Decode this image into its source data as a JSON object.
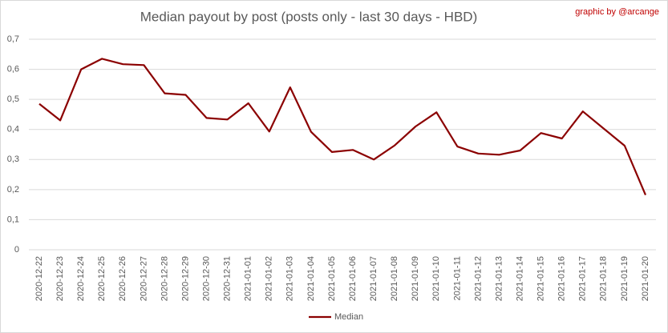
{
  "chart_data": {
    "type": "line",
    "title": "Median payout by post (posts only - last 30 days - HBD)",
    "annotation": "graphic by @arcange",
    "categories": [
      "2020-12-22",
      "2020-12-23",
      "2020-12-24",
      "2020-12-25",
      "2020-12-26",
      "2020-12-27",
      "2020-12-28",
      "2020-12-29",
      "2020-12-30",
      "2020-12-31",
      "2021-01-01",
      "2021-01-02",
      "2021-01-03",
      "2021-01-04",
      "2021-01-05",
      "2021-01-06",
      "2021-01-07",
      "2021-01-08",
      "2021-01-09",
      "2021-01-10",
      "2021-01-11",
      "2021-01-12",
      "2021-01-13",
      "2021-01-14",
      "2021-01-15",
      "2021-01-16",
      "2021-01-17",
      "2021-01-18",
      "2021-01-19",
      "2021-01-20"
    ],
    "series": [
      {
        "name": "Median",
        "color": "#8b0000",
        "values": [
          0.485,
          0.43,
          0.6,
          0.635,
          0.617,
          0.614,
          0.52,
          0.515,
          0.438,
          0.433,
          0.487,
          0.393,
          0.54,
          0.392,
          0.325,
          0.332,
          0.3,
          0.347,
          0.41,
          0.457,
          0.343,
          0.32,
          0.316,
          0.33,
          0.388,
          0.37,
          0.46,
          0.403,
          0.346,
          0.182
        ]
      }
    ],
    "ylim": [
      0,
      0.7
    ],
    "yticks": [
      0,
      {
        "value": 0.1,
        "label": "0,1"
      },
      {
        "value": 0.2,
        "label": "0,2"
      },
      {
        "value": 0.3,
        "label": "0,3"
      },
      {
        "value": 0.4,
        "label": "0,4"
      },
      {
        "value": 0.5,
        "label": "0,5"
      },
      {
        "value": 0.6,
        "label": "0,6"
      },
      {
        "value": 0.7,
        "label": "0,7"
      }
    ],
    "grid": true,
    "legend": "bottom"
  }
}
